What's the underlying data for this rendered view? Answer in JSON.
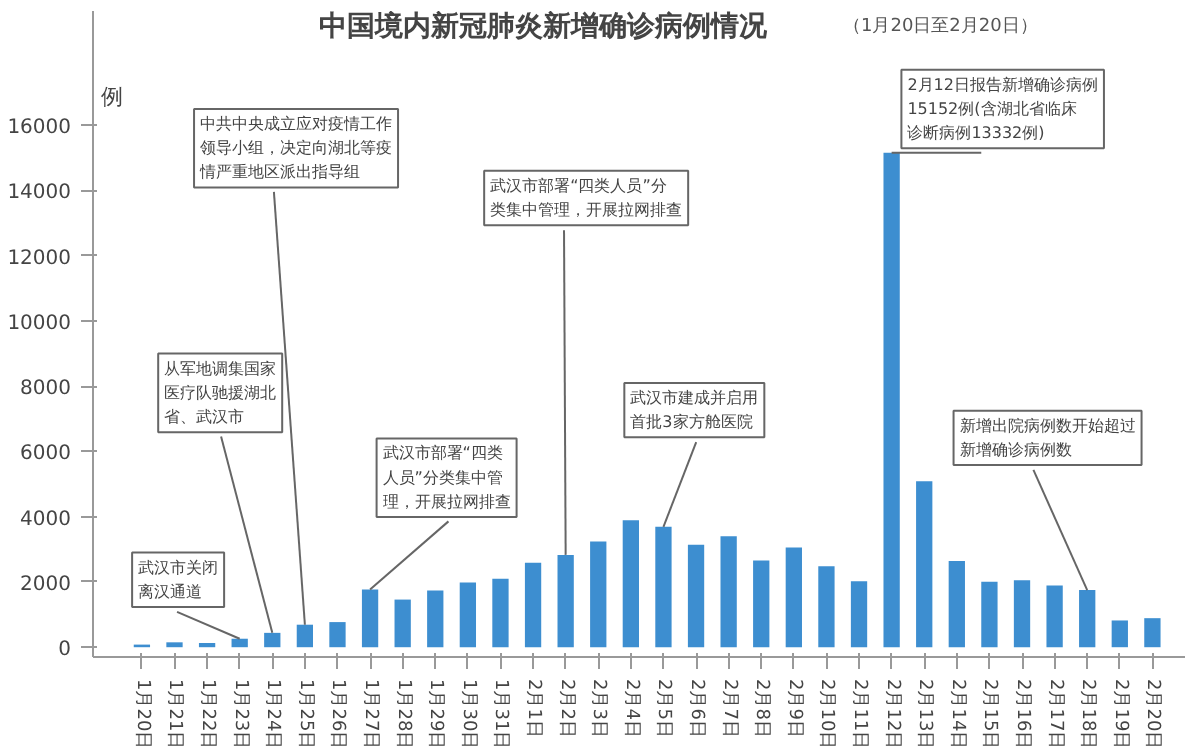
{
  "chart_data": {
    "type": "bar",
    "title": "中国境内新冠肺炎新增确诊病例情况",
    "subtitle": "（1月20日至2月20日）",
    "ylabel": "例",
    "categories": [
      "1月20日",
      "1月21日",
      "1月22日",
      "1月23日",
      "1月24日",
      "1月25日",
      "1月26日",
      "1月27日",
      "1月28日",
      "1月29日",
      "1月30日",
      "1月31日",
      "2月1日",
      "2月2日",
      "2月3日",
      "2月4日",
      "2月5日",
      "2月6日",
      "2月7日",
      "2月8日",
      "2月9日",
      "2月10日",
      "2月11日",
      "2月12日",
      "2月13日",
      "2月14日",
      "2月15日",
      "2月16日",
      "2月17日",
      "2月18日",
      "2月19日",
      "2月20日"
    ],
    "values": [
      80,
      150,
      130,
      260,
      440,
      690,
      770,
      1770,
      1460,
      1740,
      1980,
      2100,
      2590,
      2830,
      3240,
      3890,
      3690,
      3140,
      3400,
      2660,
      3060,
      2480,
      2020,
      15152,
      5090,
      2640,
      2010,
      2050,
      1890,
      1750,
      820,
      890
    ],
    "color": "#3d8ed0",
    "ylim": [
      -300,
      19500
    ],
    "yticks": [
      0,
      2000,
      4000,
      6000,
      8000,
      10000,
      12000,
      14000,
      16000
    ],
    "grid": false,
    "annotations": [
      {
        "text": "武汉市关闭离汉通道",
        "x": "1月23日",
        "y": 260
      },
      {
        "text": "从军地调集国家医疗队驰援湖北省、武汉市",
        "x": "1月24日",
        "y": 440
      },
      {
        "text": "中共中央成立应对疫情工作领导小组，决定向湖北等疫情严重地区派出指导组",
        "x": "1月25日",
        "y": 690
      },
      {
        "text": "武汉市部署“四类人员”分类集中管理，开展拉网排查",
        "x": "1月27日",
        "y": 1770
      },
      {
        "text": "武汉市部署“四类人员”分类集中管理，开展拉网排查",
        "x": "2月2日",
        "y": 2830
      },
      {
        "text": "武汉市建成并启用首批3家方舱医院",
        "x": "2月5日",
        "y": 3690
      },
      {
        "text": "2月12日报告新增确诊病例15152例(含湖北省临床诊断病例13332例)",
        "x": "2月12日",
        "y": 15152
      },
      {
        "text": "新增出院病例数开始超过新增确诊病例数",
        "x": "2月18日",
        "y": 1750
      }
    ]
  }
}
